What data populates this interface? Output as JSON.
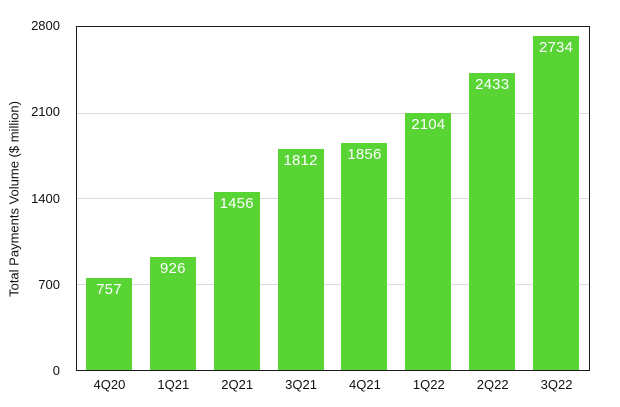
{
  "chart_data": {
    "type": "bar",
    "title": "",
    "xlabel": "",
    "ylabel": "Total Payments Volume ($ million)",
    "categories": [
      "4Q20",
      "1Q21",
      "2Q21",
      "3Q21",
      "4Q21",
      "1Q22",
      "2Q22",
      "3Q22"
    ],
    "values": [
      757,
      926,
      1456,
      1812,
      1856,
      2104,
      2433,
      2734
    ],
    "value_labels": [
      "757",
      "926",
      "1456",
      "1812",
      "1856",
      "2104",
      "2433",
      "2734"
    ],
    "ylim": [
      0,
      2800
    ],
    "yticks": [
      0,
      700,
      1400,
      2100,
      2800
    ],
    "gridlines": [
      700,
      1400,
      2100
    ],
    "grid": true,
    "legend_position": "none",
    "colors": {
      "bar_fill": "#58D435",
      "value_label_text": "#FFFFFF",
      "axis_border": "#1A1A1A",
      "gridline": "#DCDCDC",
      "tick_text": "#111111",
      "background": "#FFFFFF"
    }
  }
}
